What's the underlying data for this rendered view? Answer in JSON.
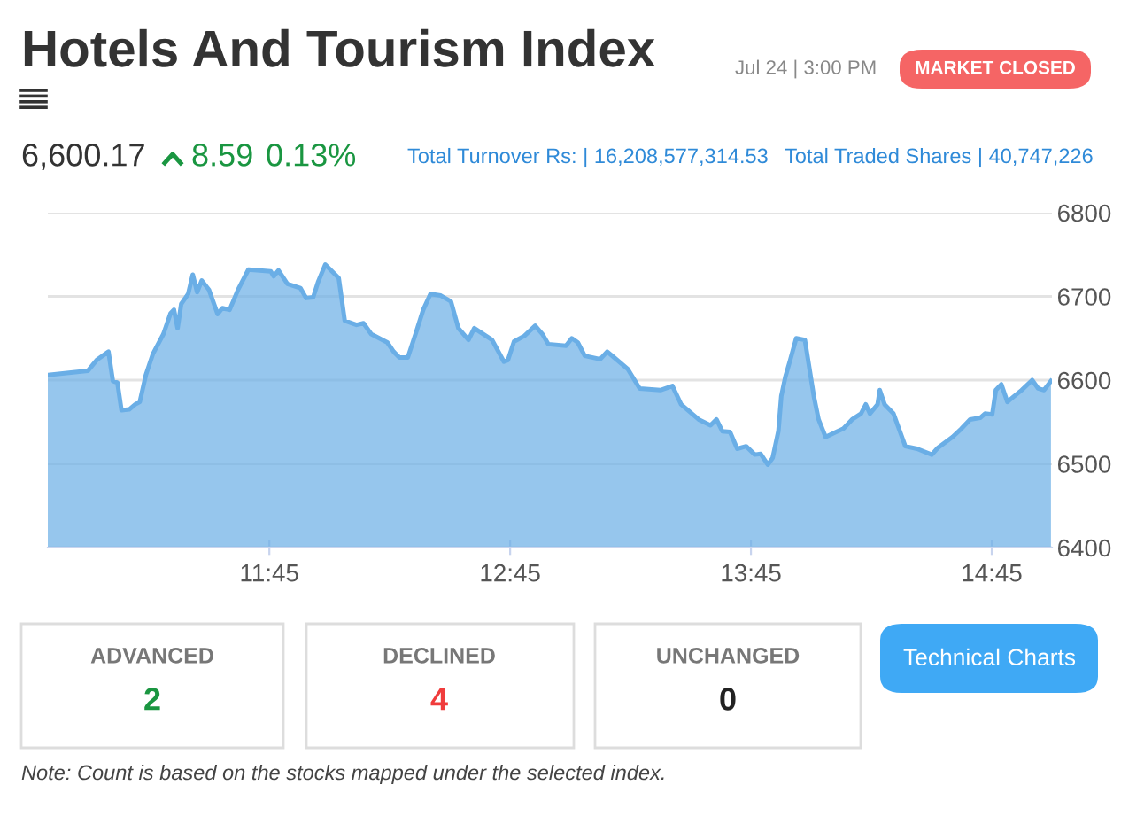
{
  "chart_data": {
    "type": "area",
    "title": "Hotels And Tourism Index",
    "annotations": [
      "Jul 24 | 3:00 PM",
      "MARKET CLOSED",
      "6,600.17",
      "8.59",
      "0.13%",
      "Total Turnover Rs: | 16,208,577,314.53",
      "Total Traded Shares | 40,747,226",
      "ADVANCED",
      "2",
      "DECLINED",
      "4",
      "UNCHANGED",
      "0",
      "Technical Charts",
      "Note: Count is based on the stocks mapped under the selected index."
    ],
    "x": [
      10.83,
      10.996,
      11.033,
      11.082,
      11.1,
      11.119,
      11.136,
      11.168,
      11.193,
      11.212,
      11.237,
      11.266,
      11.31,
      11.34,
      11.354,
      11.369,
      11.384,
      11.413,
      11.432,
      11.45,
      11.469,
      11.499,
      11.535,
      11.555,
      11.585,
      11.62,
      11.663,
      11.756,
      11.768,
      11.788,
      11.825,
      11.879,
      11.903,
      11.932,
      11.952,
      11.982,
      12.038,
      12.063,
      12.112,
      12.141,
      12.173,
      12.24,
      12.266,
      12.29,
      12.325,
      12.357,
      12.389,
      12.419,
      12.462,
      12.504,
      12.535,
      12.577,
      12.601,
      12.675,
      12.724,
      12.741,
      12.766,
      12.81,
      12.854,
      12.884,
      12.908,
      12.982,
      13.006,
      13.031,
      13.06,
      13.124,
      13.153,
      13.182,
      13.239,
      13.288,
      13.374,
      13.424,
      13.46,
      13.533,
      13.582,
      13.607,
      13.631,
      13.663,
      13.693,
      13.73,
      13.766,
      13.79,
      13.82,
      13.84,
      13.864,
      13.876,
      13.893,
      13.913,
      13.938,
      13.974,
      14.011,
      14.031,
      14.06,
      14.104,
      14.134,
      14.17,
      14.207,
      14.227,
      14.244,
      14.276,
      14.285,
      14.305,
      14.342,
      14.391,
      14.44,
      14.501,
      14.526,
      14.587,
      14.624,
      14.66,
      14.702,
      14.722,
      14.752,
      14.767,
      14.79,
      14.815,
      14.84,
      14.874,
      14.918,
      14.943,
      14.967,
      14.996
    ],
    "series": [
      {
        "color": "#6aaee6",
        "values": [
          6606,
          6611,
          6624,
          6634,
          6599,
          6597,
          6564,
          6565,
          6571,
          6574,
          6606,
          6631,
          6655,
          6680,
          6684,
          6662,
          6691,
          6703,
          6726,
          6705,
          6719,
          6708,
          6679,
          6686,
          6684,
          6708,
          6732,
          6730,
          6724,
          6731,
          6715,
          6710,
          6698,
          6699,
          6717,
          6738,
          6722,
          6671,
          6666,
          6668,
          6655,
          6645,
          6634,
          6627,
          6627,
          6655,
          6684,
          6703,
          6701,
          6694,
          6662,
          6648,
          6662,
          6648,
          6622,
          6624,
          6646,
          6653,
          6665,
          6655,
          6643,
          6641,
          6650,
          6645,
          6629,
          6625,
          6634,
          6627,
          6613,
          6590,
          6588,
          6593,
          6571,
          6553,
          6546,
          6553,
          6539,
          6538,
          6518,
          6521,
          6511,
          6512,
          6499,
          6507,
          6539,
          6581,
          6604,
          6624,
          6650,
          6648,
          6581,
          6553,
          6532,
          6538,
          6542,
          6553,
          6560,
          6571,
          6560,
          6571,
          6588,
          6571,
          6560,
          6521,
          6518,
          6511,
          6519,
          6532,
          6542,
          6553,
          6555,
          6560,
          6559,
          6588,
          6595,
          6574,
          6580,
          6588,
          6600,
          6590,
          6588,
          6599
        ]
      }
    ],
    "xlim": [
      10.83,
      15.0
    ],
    "ylim": [
      6400,
      6800
    ],
    "xticks": [
      {
        "value": 11.75,
        "label": "11:45"
      },
      {
        "value": 12.75,
        "label": "12:45"
      },
      {
        "value": 13.75,
        "label": "13:45"
      },
      {
        "value": 14.75,
        "label": "14:45"
      }
    ],
    "yticks": [
      6400,
      6500,
      6600,
      6700,
      6800
    ],
    "grid": "y",
    "legend": false
  }
}
